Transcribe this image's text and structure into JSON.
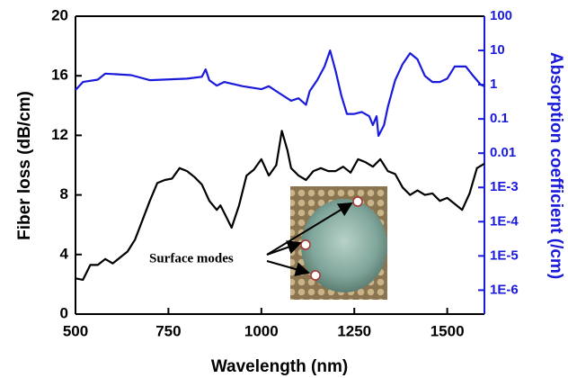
{
  "chart_data": {
    "type": "line",
    "x_label": "Wavelength (nm)",
    "y_label": "Fiber loss (dB/cm)",
    "y2_label": "Absorption coefficient (/cm)",
    "annotation": "Surface modes",
    "xlim": [
      500,
      1600
    ],
    "xticks": [
      500,
      750,
      1000,
      1250,
      1500
    ],
    "ylim": [
      0,
      20
    ],
    "yticks": [
      0,
      4,
      8,
      12,
      16,
      20
    ],
    "y2lim": [
      2e-07,
      100
    ],
    "y2scale": "log",
    "y2color": "#1a1adb",
    "y2ticks": [
      100,
      10,
      1,
      0.1,
      0.01,
      {
        "value": 0.001,
        "label": "1E-3"
      },
      {
        "value": 0.0001,
        "label": "1E-4"
      },
      {
        "value": 1e-05,
        "label": "1E-5"
      },
      {
        "value": 1e-06,
        "label": "1E-6"
      }
    ],
    "series": [
      {
        "color": "#000000",
        "x": [
          500,
          520,
          540,
          560,
          580,
          600,
          620,
          640,
          660,
          680,
          700,
          720,
          740,
          760,
          780,
          800,
          820,
          840,
          860,
          880,
          890,
          900,
          920,
          940,
          960,
          980,
          1000,
          1020,
          1040,
          1055,
          1070,
          1080,
          1100,
          1120,
          1140,
          1160,
          1180,
          1200,
          1220,
          1240,
          1260,
          1280,
          1300,
          1320,
          1340,
          1360,
          1380,
          1400,
          1420,
          1440,
          1460,
          1480,
          1500,
          1520,
          1540,
          1560,
          1580,
          1600
        ],
        "values": [
          2.4,
          2.3,
          3.3,
          3.3,
          3.7,
          3.4,
          3.8,
          4.2,
          5.0,
          6.3,
          7.6,
          8.8,
          9.0,
          9.1,
          9.8,
          9.6,
          9.2,
          8.7,
          7.6,
          7.0,
          7.3,
          6.8,
          5.8,
          7.3,
          9.3,
          9.7,
          10.4,
          9.3,
          10.0,
          12.3,
          11.0,
          9.8,
          9.3,
          9.0,
          9.6,
          9.8,
          9.6,
          9.6,
          9.9,
          9.5,
          10.4,
          10.2,
          9.9,
          10.4,
          9.6,
          9.4,
          8.5,
          8.0,
          8.3,
          8.0,
          8.1,
          7.6,
          7.8,
          7.4,
          7.0,
          8.1,
          9.8,
          10.1
        ]
      },
      {
        "color": "#1a1adb",
        "axis": "y2",
        "x": [
          500,
          520,
          560,
          580,
          650,
          700,
          800,
          840,
          850,
          860,
          880,
          900,
          950,
          1000,
          1020,
          1050,
          1080,
          1100,
          1120,
          1130,
          1150,
          1170,
          1185,
          1200,
          1215,
          1230,
          1250,
          1270,
          1290,
          1300,
          1310,
          1315,
          1330,
          1340,
          1360,
          1380,
          1400,
          1420,
          1440,
          1460,
          1480,
          1500,
          1520,
          1550,
          1570,
          1590,
          1600
        ],
        "values": [
          0.7,
          1.2,
          1.4,
          2.1,
          1.9,
          1.35,
          1.5,
          1.7,
          2.8,
          1.35,
          0.94,
          1.2,
          0.9,
          0.74,
          0.9,
          0.55,
          0.34,
          0.4,
          0.26,
          0.65,
          1.35,
          3.4,
          10,
          2.5,
          0.48,
          0.14,
          0.14,
          0.16,
          0.12,
          0.066,
          0.12,
          0.032,
          0.066,
          0.22,
          1.35,
          4,
          8.3,
          5.5,
          1.8,
          1.2,
          1.2,
          1.5,
          3.4,
          3.4,
          1.8,
          1,
          0.9
        ]
      }
    ]
  }
}
